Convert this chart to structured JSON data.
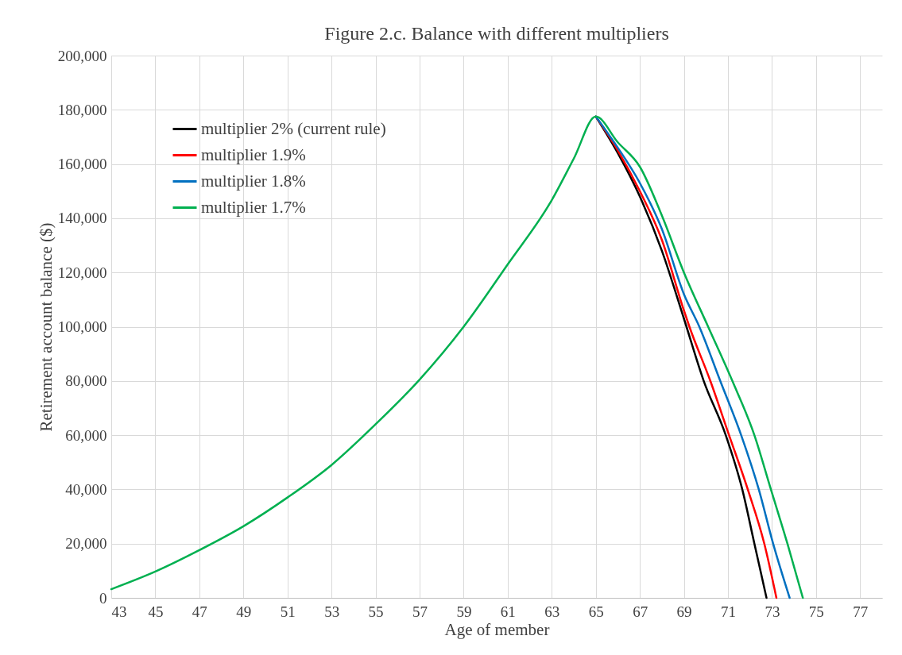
{
  "chart_data": {
    "type": "line",
    "title": "Figure 2.c. Balance with different multipliers",
    "xlabel": "Age of member",
    "ylabel": "Retirement account balance ($)",
    "xlim": [
      43,
      78
    ],
    "xticks": [
      43,
      45,
      47,
      49,
      51,
      53,
      55,
      57,
      59,
      61,
      63,
      65,
      67,
      69,
      71,
      73,
      75,
      77
    ],
    "ylim": [
      0,
      200000
    ],
    "yticks": [
      0,
      {
        "value": 20000,
        "label": "20,000"
      },
      {
        "value": 40000,
        "label": "40,000"
      },
      {
        "value": 60000,
        "label": "60,000"
      },
      {
        "value": 80000,
        "label": "80,000"
      },
      {
        "value": 100000,
        "label": "100,000"
      },
      {
        "value": 120000,
        "label": "120,000"
      },
      {
        "value": 140000,
        "label": "140,000"
      },
      {
        "value": 160000,
        "label": "160,000"
      },
      {
        "value": 180000,
        "label": "180,000"
      },
      {
        "value": 200000,
        "label": "200,000"
      }
    ],
    "grid": true,
    "legend": "top left",
    "series": [
      {
        "name": "multiplier 2% (current rule)",
        "color": "#000000",
        "x": [
          65,
          66,
          67,
          68,
          69,
          69.9,
          70.9,
          71.65,
          72.2,
          72.75
        ],
        "values": [
          177500,
          164000,
          148000,
          128000,
          103000,
          80000,
          60000,
          40000,
          20000,
          0
        ]
      },
      {
        "name": "multiplier 1.9%",
        "color": "#ff0000",
        "x": [
          65,
          66,
          67,
          68,
          69,
          69.25,
          70.2,
          71.05,
          71.9,
          72.65,
          73.2
        ],
        "values": [
          177500,
          165000,
          150000,
          132000,
          106000,
          100000,
          80000,
          60000,
          40000,
          20000,
          0
        ]
      },
      {
        "name": "multiplier 1.8%",
        "color": "#0070c0",
        "x": [
          65,
          66,
          67,
          68,
          69,
          69.7,
          70.65,
          71.6,
          72.4,
          73.05,
          73.8
        ],
        "values": [
          177500,
          166000,
          153000,
          136000,
          112000,
          100000,
          80000,
          60000,
          40000,
          20000,
          0
        ]
      },
      {
        "name": "multiplier 1.7%",
        "color": "#00b050",
        "x": [
          43,
          45,
          47,
          49,
          51,
          53,
          55,
          57,
          59,
          61,
          63,
          64,
          65,
          66,
          67,
          68,
          69,
          70.1,
          71.2,
          72.2,
          72.95,
          73.7,
          74.4
        ],
        "values": [
          3200,
          9700,
          17600,
          26400,
          37000,
          49000,
          64000,
          80500,
          100000,
          123000,
          146700,
          162000,
          177500,
          168000,
          159000,
          141000,
          120000,
          100000,
          80000,
          60000,
          40000,
          20000,
          0
        ]
      }
    ]
  }
}
